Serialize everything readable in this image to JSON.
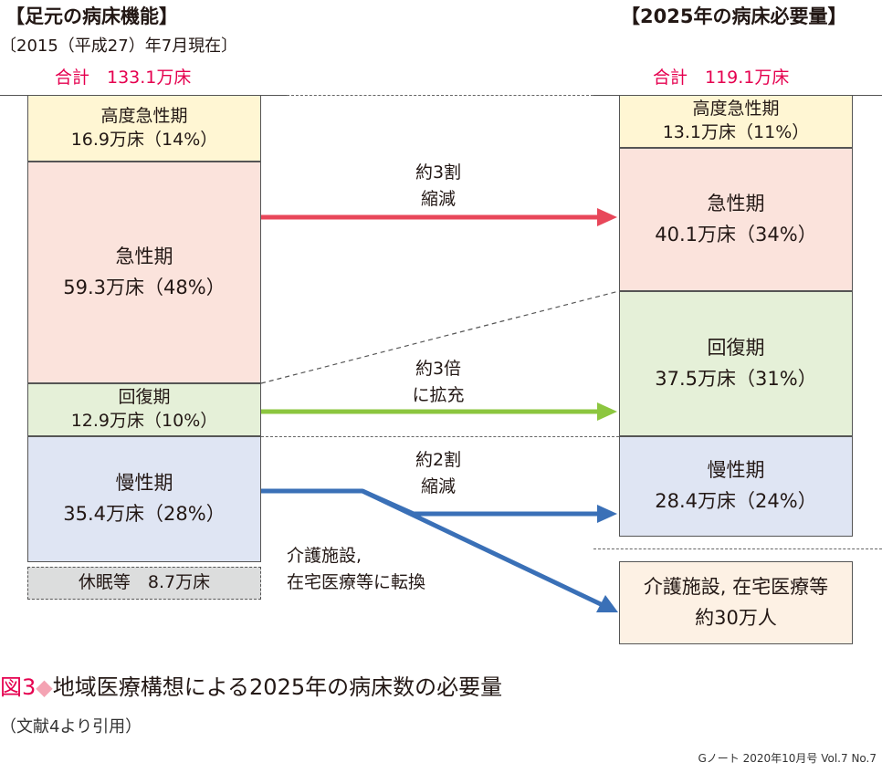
{
  "current": {
    "header": "【足元の病床機能】",
    "subheader": "〔2015（平成27）年7月現在〕",
    "total": "合計　133.1万床",
    "boxes": [
      {
        "name": "高度急性期",
        "value": "16.9万床（14%）"
      },
      {
        "name": "急性期",
        "value": "59.3万床（48%）"
      },
      {
        "name": "回復期",
        "value": "12.9万床（10%）"
      },
      {
        "name": "慢性期",
        "value": "35.4万床（28%）"
      }
    ],
    "idle": "休眠等　8.7万床"
  },
  "future": {
    "header": "【2025年の病床必要量】",
    "total": "合計　119.1万床",
    "boxes": [
      {
        "name": "高度急性期",
        "value": "13.1万床（11%）"
      },
      {
        "name": "急性期",
        "value": "40.1万床（34%）"
      },
      {
        "name": "回復期",
        "value": "37.5万床（31%）"
      },
      {
        "name": "慢性期",
        "value": "28.4万床（24%）"
      }
    ],
    "care": {
      "line1": "介護施設, 在宅医療等",
      "line2": "約30万人"
    }
  },
  "arrows": {
    "acute": {
      "line1": "約3割",
      "line2": "縮減",
      "color": "#e8475a"
    },
    "recovery": {
      "line1": "約3倍",
      "line2": "に拡充",
      "color": "#8cc63f"
    },
    "chronic": {
      "line1": "約2割",
      "line2": "縮減",
      "color": "#3a70b7"
    },
    "care": {
      "line1": "介護施設,",
      "line2": "在宅医療等に転換"
    }
  },
  "caption": {
    "label": "図3",
    "diamond": "◆",
    "title": "地域医療構想による2025年の病床数の必要量",
    "source": "（文献4より引用）",
    "credit": "Gノート 2020年10月号 Vol.7 No.7"
  },
  "colors": {
    "high_acute": "#fff6d3",
    "acute": "#fbe3dc",
    "recovery": "#e5f0d8",
    "chronic": "#dfe5f3",
    "idle": "#dcdddd",
    "care": "#fdf1e4",
    "accent": "#e5004f"
  }
}
